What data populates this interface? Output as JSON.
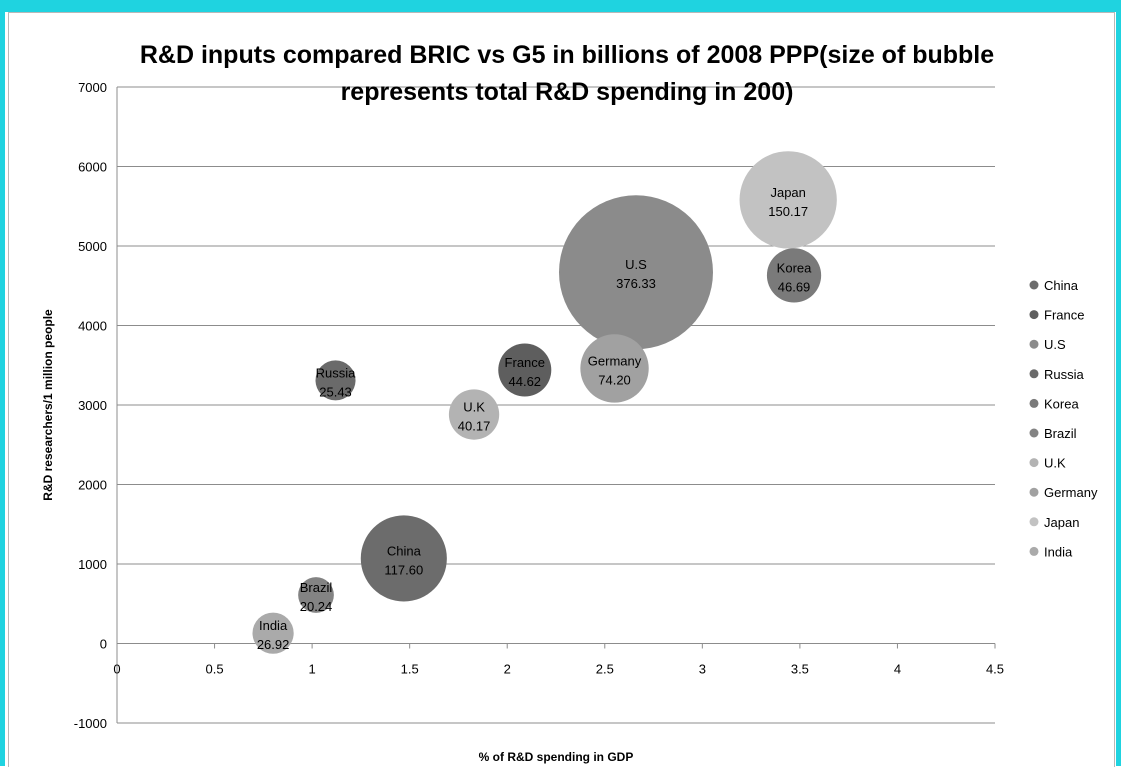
{
  "chart_data": {
    "type": "bubble",
    "title_lines": [
      "R&D inputs compared BRIC vs G5 in billions of 2008 PPP(size of bubble",
      "represents total R&D spending in 200)"
    ],
    "xlabel": "% of R&D spending in GDP",
    "ylabel": "R&D researchers/1 million people",
    "xlim": [
      0,
      4.5
    ],
    "ylim": [
      -1000,
      7000
    ],
    "x_ticks": [
      "0",
      "0.5",
      "1",
      "1.5",
      "2",
      "2.5",
      "3",
      "3.5",
      "4",
      "4.5"
    ],
    "y_ticks": [
      "-1000",
      "0",
      "1000",
      "2000",
      "3000",
      "4000",
      "5000",
      "6000",
      "7000"
    ],
    "grid": "horizontal",
    "legend_position": "right",
    "series": [
      {
        "name": "China",
        "x": 1.47,
        "y": 1070,
        "size": 117.6,
        "label": "117.60",
        "color": "#6c6c6c"
      },
      {
        "name": "France",
        "x": 2.09,
        "y": 3440,
        "size": 44.62,
        "label": "44.62",
        "color": "#5e5e5e"
      },
      {
        "name": "U.S",
        "x": 2.66,
        "y": 4670,
        "size": 376.33,
        "label": "376.33",
        "color": "#8b8b8b"
      },
      {
        "name": "Russia",
        "x": 1.12,
        "y": 3310,
        "size": 25.43,
        "label": "25.43",
        "color": "#6a6a6a"
      },
      {
        "name": "Korea",
        "x": 3.47,
        "y": 4630,
        "size": 46.69,
        "label": "46.69",
        "color": "#7a7a7a"
      },
      {
        "name": "Brazil",
        "x": 1.02,
        "y": 610,
        "size": 20.24,
        "label": "20.24",
        "color": "#838383"
      },
      {
        "name": "U.K",
        "x": 1.83,
        "y": 2880,
        "size": 40.17,
        "label": "40.17",
        "color": "#b3b3b3"
      },
      {
        "name": "Germany",
        "x": 2.55,
        "y": 3460,
        "size": 74.2,
        "label": "74.20",
        "color": "#a1a1a1"
      },
      {
        "name": "Japan",
        "x": 3.44,
        "y": 5580,
        "size": 150.17,
        "label": "150.17",
        "color": "#c2c2c2"
      },
      {
        "name": "India",
        "x": 0.8,
        "y": 130,
        "size": 26.92,
        "label": "26.92",
        "color": "#aaaaaa"
      }
    ]
  }
}
